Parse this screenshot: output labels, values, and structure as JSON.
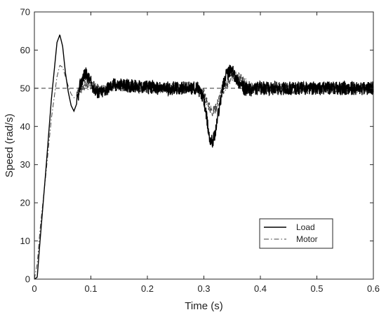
{
  "chart_data": {
    "type": "line",
    "xlabel": "Time (s)",
    "ylabel": "Speed (rad/s)",
    "xlim": [
      0,
      0.6
    ],
    "ylim": [
      0,
      70
    ],
    "xticks": [
      0,
      0.1,
      0.2,
      0.3,
      0.4,
      0.5,
      0.6
    ],
    "yticks": [
      0,
      10,
      20,
      30,
      40,
      50,
      60,
      70
    ],
    "xtick_labels": [
      "0",
      "0.1",
      "0.2",
      "0.3",
      "0.4",
      "0.5",
      "0.6"
    ],
    "ytick_labels": [
      "0",
      "10",
      "20",
      "30",
      "40",
      "50",
      "60",
      "70"
    ],
    "grid": false,
    "legend_position": "lower-right",
    "reference_line": {
      "y": 50,
      "style": "dashed"
    },
    "series": [
      {
        "name": "Load",
        "style": "solid",
        "color": "#000000",
        "x": [
          0,
          0.005,
          0.01,
          0.02,
          0.03,
          0.04,
          0.045,
          0.05,
          0.055,
          0.06,
          0.065,
          0.07,
          0.075,
          0.08,
          0.085,
          0.09,
          0.1,
          0.11,
          0.12,
          0.14,
          0.18,
          0.22,
          0.26,
          0.29,
          0.3,
          0.305,
          0.31,
          0.315,
          0.32,
          0.325,
          0.33,
          0.335,
          0.34,
          0.345,
          0.35,
          0.355,
          0.36,
          0.37,
          0.38,
          0.4,
          0.45,
          0.5,
          0.55,
          0.6
        ],
        "y": [
          0,
          0.5,
          10,
          28,
          47,
          62,
          64,
          61,
          54,
          49,
          45.5,
          44,
          46,
          50,
          52.5,
          54,
          51.5,
          49,
          49,
          51,
          50.5,
          50,
          50,
          50,
          47,
          42,
          37,
          36,
          38,
          43,
          47.5,
          51.5,
          53.5,
          54.5,
          54.5,
          53.5,
          52,
          50,
          49.5,
          50,
          50,
          50,
          50,
          50
        ]
      },
      {
        "name": "Motor",
        "style": "dash-dot",
        "color": "#444444",
        "x": [
          0,
          0.005,
          0.01,
          0.02,
          0.03,
          0.04,
          0.045,
          0.05,
          0.055,
          0.06,
          0.065,
          0.07,
          0.075,
          0.08,
          0.09,
          0.1,
          0.11,
          0.12,
          0.14,
          0.18,
          0.22,
          0.26,
          0.29,
          0.3,
          0.31,
          0.315,
          0.32,
          0.325,
          0.33,
          0.34,
          0.35,
          0.36,
          0.37,
          0.38,
          0.4,
          0.45,
          0.5,
          0.55,
          0.6
        ],
        "y": [
          0,
          4,
          13,
          27,
          42,
          53,
          56,
          55.5,
          53,
          50.5,
          48.5,
          47.5,
          48,
          49.5,
          51,
          50.5,
          50,
          49.5,
          50.5,
          50.5,
          50,
          50,
          50,
          48.5,
          45,
          44,
          44.5,
          46.5,
          48.5,
          51,
          53,
          53,
          52,
          50.5,
          50,
          50,
          50,
          50,
          50
        ]
      }
    ]
  }
}
